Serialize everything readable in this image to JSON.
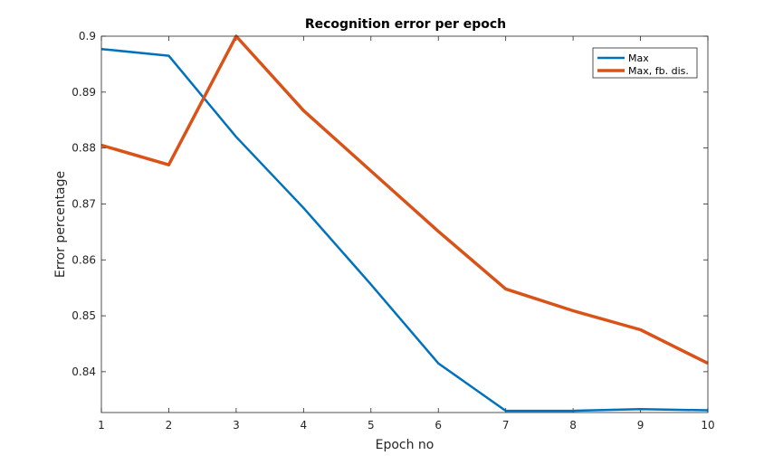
{
  "chart_data": {
    "type": "line",
    "title": "Recognition error per epoch",
    "xlabel": "Epoch no",
    "ylabel": "Error percentage",
    "xlim": [
      1,
      10
    ],
    "ylim": [
      0.8327,
      0.9
    ],
    "x_ticks": [
      1,
      2,
      3,
      4,
      5,
      6,
      7,
      8,
      9,
      10
    ],
    "x_tick_labels": [
      "1",
      "2",
      "3",
      "4",
      "5",
      "6",
      "7",
      "8",
      "9",
      "10"
    ],
    "y_ticks": [
      0.84,
      0.85,
      0.86,
      0.87,
      0.88,
      0.89,
      0.9
    ],
    "y_tick_labels": [
      "0.84",
      "0.85",
      "0.86",
      "0.87",
      "0.88",
      "0.89",
      "0.9"
    ],
    "grid": false,
    "legend_position": "top-right",
    "x": [
      1,
      2,
      3,
      4,
      5,
      6,
      7,
      8,
      9,
      10
    ],
    "series": [
      {
        "name": "Max",
        "color": "#0072BD",
        "values": [
          0.8977,
          0.8965,
          0.882,
          0.8693,
          0.8556,
          0.8415,
          0.833,
          0.833,
          0.8333,
          0.8331
        ]
      },
      {
        "name": "Max, fb. dis.",
        "color": "#D95319",
        "values": [
          0.8805,
          0.877,
          0.9,
          0.8867,
          0.8759,
          0.8651,
          0.8548,
          0.8509,
          0.8475,
          0.8415
        ]
      }
    ]
  }
}
